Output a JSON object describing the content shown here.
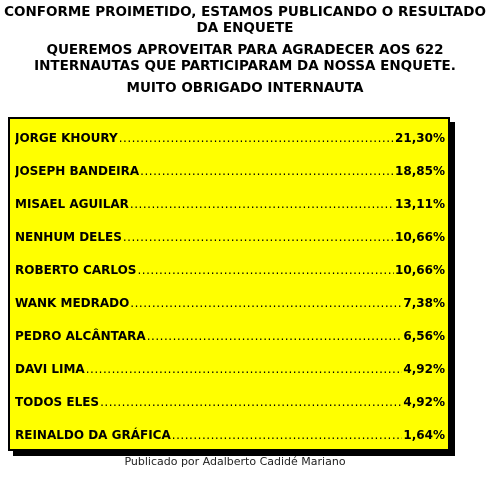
{
  "header": {
    "line1": "CONFORME PROIMETIDO, ESTAMOS PUBLICANDO O RESULTADO DA ENQUETE",
    "line2": "QUEREMOS APROVEITAR PARA AGRADECER AOS 622 INTERNAUTAS QUE PARTICIPARAM DA NOSSA ENQUETE.",
    "line3": "MUITO OBRIGADO INTERNAUTA"
  },
  "results": [
    {
      "name": "JORGE KHOURY",
      "percent": "21,30%"
    },
    {
      "name": "JOSEPH BANDEIRA",
      "percent": "18,85%"
    },
    {
      "name": "MISAEL AGUILAR",
      "percent": "13,11%"
    },
    {
      "name": "NENHUM DELES",
      "percent": "10,66%"
    },
    {
      "name": "ROBERTO CARLOS",
      "percent": "10,66%"
    },
    {
      "name": "WANK MEDRADO",
      "percent": "7,38%"
    },
    {
      "name": "PEDRO ALCÂNTARA",
      "percent": "6,56%"
    },
    {
      "name": "DAVI LIMA",
      "percent": "4,92%"
    },
    {
      "name": "TODOS ELES",
      "percent": "4,92%"
    },
    {
      "name": "REINALDO DA GRÁFICA",
      "percent": "1,64%"
    }
  ],
  "footer": {
    "credit": "Publicado por Adalberto Cadidé Mariano"
  },
  "colors": {
    "box_background": "#ffff00",
    "border": "#000000"
  }
}
